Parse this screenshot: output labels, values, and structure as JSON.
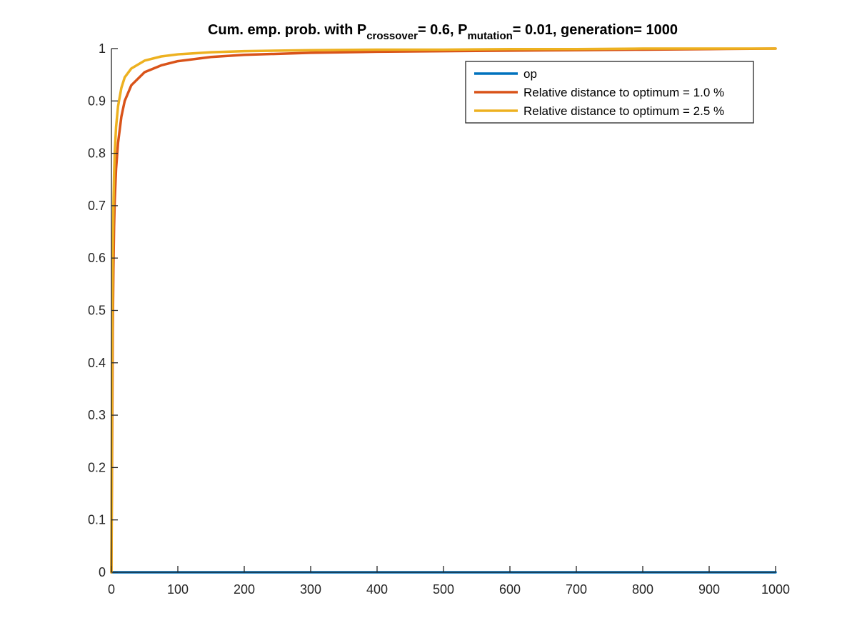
{
  "chart_data": {
    "type": "line",
    "title": {
      "part1": "Cum. emp. prob. with P",
      "sub1": "crossover",
      "part2": "= 0.6, P",
      "sub2": "mutation",
      "part3": "= 0.01, generation= 1000"
    },
    "xlabel": "",
    "ylabel": "",
    "xlim": [
      0,
      1000
    ],
    "ylim": [
      0,
      1
    ],
    "xticks": [
      "0",
      "100",
      "200",
      "300",
      "400",
      "500",
      "600",
      "700",
      "800",
      "900",
      "1000"
    ],
    "yticks": [
      "0",
      "0.1",
      "0.2",
      "0.3",
      "0.4",
      "0.5",
      "0.6",
      "0.7",
      "0.8",
      "0.9",
      "1"
    ],
    "grid": false,
    "legend_position": "top-right",
    "series": [
      {
        "name": "op",
        "color": "#0072BD",
        "x": [
          0,
          1000
        ],
        "y": [
          0,
          0
        ]
      },
      {
        "name": "Relative distance to optimum = 1.0 %",
        "color": "#D95319",
        "x": [
          0,
          1,
          2,
          3,
          4,
          5,
          7,
          10,
          15,
          20,
          30,
          50,
          75,
          100,
          150,
          200,
          300,
          400,
          500,
          600,
          700,
          800,
          900,
          1000
        ],
        "y": [
          0,
          0.23,
          0.46,
          0.58,
          0.66,
          0.71,
          0.77,
          0.82,
          0.87,
          0.9,
          0.93,
          0.955,
          0.968,
          0.976,
          0.984,
          0.988,
          0.992,
          0.994,
          0.995,
          0.996,
          0.997,
          0.998,
          0.999,
          1.0
        ]
      },
      {
        "name": "Relative distance to optimum = 2.5 %",
        "color": "#EDB120",
        "x": [
          0,
          1,
          2,
          3,
          4,
          5,
          7,
          10,
          15,
          20,
          30,
          50,
          75,
          100,
          150,
          200,
          300,
          400,
          500,
          600,
          700,
          800,
          900,
          1000
        ],
        "y": [
          0,
          0.4,
          0.6,
          0.7,
          0.76,
          0.8,
          0.85,
          0.89,
          0.925,
          0.945,
          0.962,
          0.977,
          0.985,
          0.989,
          0.993,
          0.995,
          0.997,
          0.998,
          0.998,
          0.999,
          0.999,
          1.0,
          1.0,
          1.0
        ]
      }
    ]
  }
}
